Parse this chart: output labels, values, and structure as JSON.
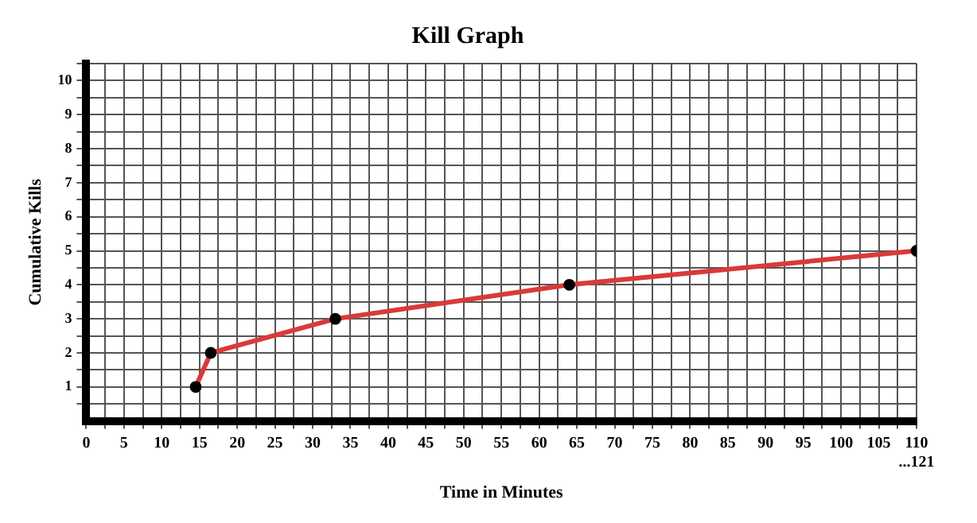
{
  "chart_data": {
    "type": "line",
    "title": "Kill Graph",
    "xlabel": "Time in Minutes",
    "ylabel": "Cumulative Kills",
    "x": [
      14.5,
      16.5,
      33,
      64,
      110
    ],
    "series": [
      {
        "color": "#d93a3a",
        "values": [
          1,
          2,
          3,
          4,
          5
        ]
      }
    ],
    "xlim": [
      0,
      110
    ],
    "xticks": [
      {
        "value": 0,
        "label": "0"
      },
      {
        "value": 2.5,
        "label": null
      },
      5,
      {
        "value": 7.5,
        "label": null
      },
      10,
      {
        "value": 12.5,
        "label": null
      },
      15,
      {
        "value": 17.5,
        "label": null
      },
      20,
      {
        "value": 22.5,
        "label": null
      },
      25,
      {
        "value": 27.5,
        "label": null
      },
      30,
      {
        "value": 32.5,
        "label": null
      },
      35,
      {
        "value": 37.5,
        "label": null
      },
      40,
      {
        "value": 42.5,
        "label": null
      },
      45,
      {
        "value": 47.5,
        "label": null
      },
      50,
      {
        "value": 52.5,
        "label": null
      },
      55,
      {
        "value": 57.5,
        "label": null
      },
      60,
      {
        "value": 62.5,
        "label": null
      },
      65,
      {
        "value": 67.5,
        "label": null
      },
      70,
      {
        "value": 72.5,
        "label": null
      },
      75,
      {
        "value": 77.5,
        "label": null
      },
      80,
      {
        "value": 82.5,
        "label": null
      },
      85,
      {
        "value": 87.5,
        "label": null
      },
      90,
      {
        "value": 92.5,
        "label": null
      },
      95,
      {
        "value": 97.5,
        "label": null
      },
      100,
      {
        "value": 102.5,
        "label": null
      },
      105,
      {
        "value": 107.5,
        "label": null
      },
      {
        "value": 110,
        "label": "110 ...121"
      }
    ],
    "ylim": [
      0,
      10.5
    ],
    "yticks": [
      {
        "value": 0.5,
        "label": null
      },
      1,
      {
        "value": 1.5,
        "label": null
      },
      2,
      {
        "value": 2.5,
        "label": null
      },
      3,
      {
        "value": 3.5,
        "label": null
      },
      4,
      {
        "value": 4.5,
        "label": null
      },
      5,
      {
        "value": 5.5,
        "label": null
      },
      6,
      {
        "value": 6.5,
        "label": null
      },
      7,
      {
        "value": 7.5,
        "label": null
      },
      8,
      {
        "value": 8.5,
        "label": null
      },
      9,
      {
        "value": 9.5,
        "label": null
      },
      10,
      {
        "value": 10.5,
        "label": null
      }
    ],
    "grid": true,
    "legend": false,
    "marker": "circle",
    "line_style": "solid"
  }
}
